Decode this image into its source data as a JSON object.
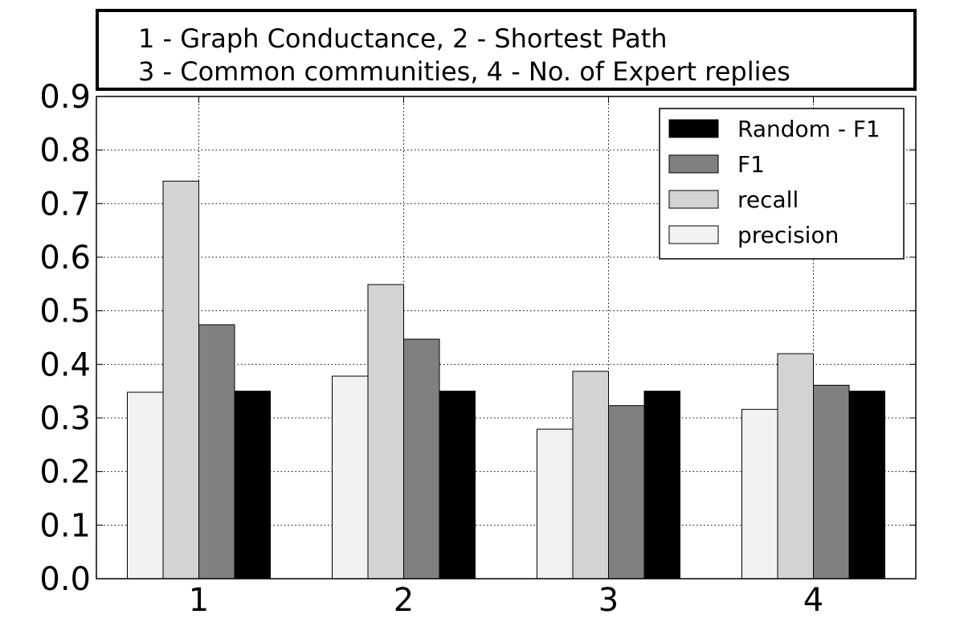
{
  "chart_data": {
    "type": "bar",
    "title_lines": [
      "1 - Graph Conductance, 2 - Shortest Path",
      "3 - Common communities, 4 - No. of Expert replies"
    ],
    "categories": [
      "1",
      "2",
      "3",
      "4"
    ],
    "ylim": [
      0,
      0.9
    ],
    "yticks": [
      "0.0",
      "0.1",
      "0.2",
      "0.3",
      "0.4",
      "0.5",
      "0.6",
      "0.7",
      "0.8",
      "0.9"
    ],
    "grid": true,
    "legend_position": "top-right",
    "series": [
      {
        "name": "precision",
        "color": "#f2f2f2",
        "values": [
          0.348,
          0.378,
          0.279,
          0.316
        ]
      },
      {
        "name": "recall",
        "color": "#d3d3d3",
        "values": [
          0.742,
          0.549,
          0.387,
          0.42
        ]
      },
      {
        "name": "F1",
        "color": "#808080",
        "values": [
          0.474,
          0.447,
          0.323,
          0.361
        ]
      },
      {
        "name": "Random - F1",
        "color": "#000000",
        "values": [
          0.35,
          0.35,
          0.35,
          0.35
        ]
      }
    ],
    "legend_order": [
      "Random - F1",
      "F1",
      "recall",
      "precision"
    ]
  }
}
